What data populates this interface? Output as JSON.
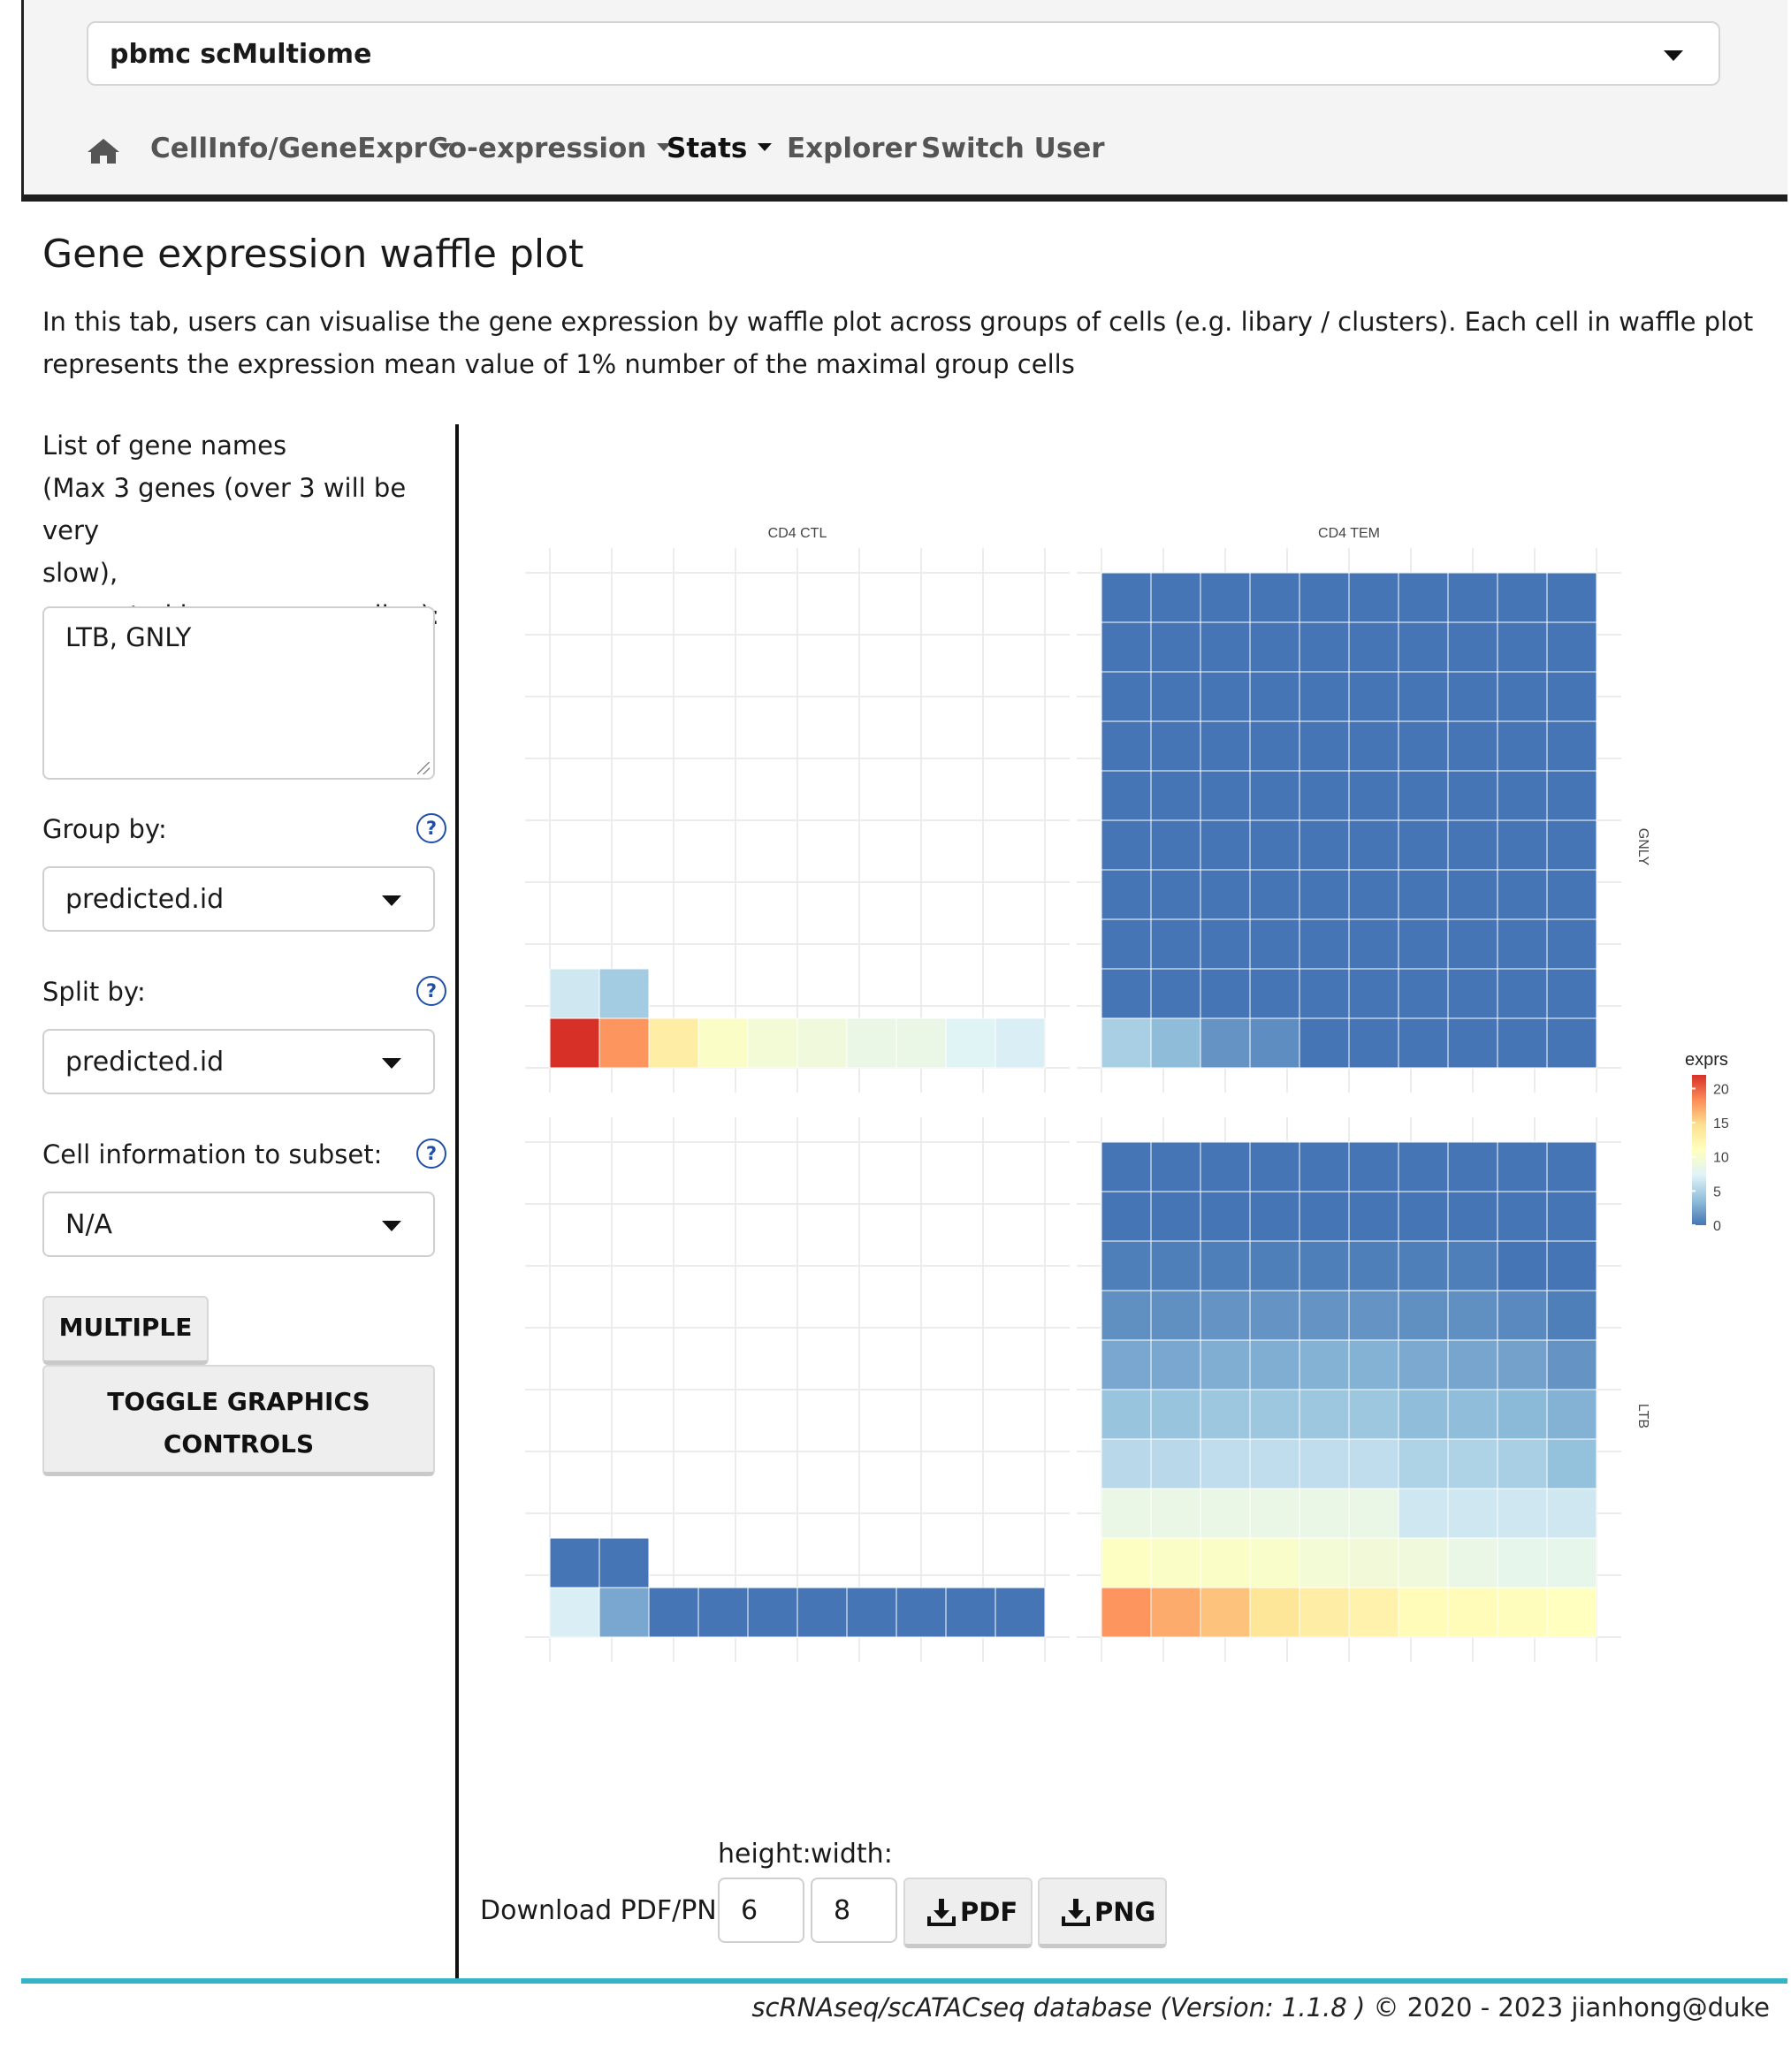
{
  "header": {
    "dataset_selector": "pbmc scMultiome",
    "nav": {
      "home_icon": "home-icon",
      "items": [
        "CellInfo/GeneExpr",
        "Co-expression",
        "Stats",
        "Explorer",
        "Switch User"
      ],
      "active": "Stats"
    }
  },
  "page": {
    "title": "Gene expression waffle plot",
    "description": "In this tab, users can visualise the gene expression by waffle plot across groups of cells (e.g. libary / clusters). Each cell in waffle plot represents the expression mean value of 1% number of the maximal group cells"
  },
  "sidebar": {
    "gene_list_label_lines": [
      "List of gene names",
      "(Max 3 genes (over 3 will be very",
      "slow),",
      "separated by , or ; or newline):"
    ],
    "gene_list_value": "LTB, GNLY",
    "group_by_label": "Group by:",
    "group_by_value": "predicted.id",
    "split_by_label": "Split by:",
    "split_by_value": "predicted.id",
    "subset_label": "Cell information to subset:",
    "subset_value": "N/A",
    "multiple_button": "MULTIPLE",
    "toggle_button_lines": [
      "TOGGLE GRAPHICS",
      "CONTROLS"
    ],
    "help_icon": "question-circle-icon"
  },
  "chart_data": {
    "type": "heatmap",
    "title": "",
    "column_facets": [
      "CD4 CTL",
      "CD4 TEM"
    ],
    "row_facets": [
      "GNLY",
      "LTB"
    ],
    "grid": true,
    "legend": {
      "title": "exprs",
      "ticks": [
        20,
        15,
        10,
        5,
        0
      ],
      "range": [
        0,
        22
      ],
      "placement": "right",
      "colors": [
        "#4575b4",
        "#91bfdb",
        "#e0f3f8",
        "#ffffbf",
        "#fee090",
        "#fc8d59",
        "#d73027"
      ]
    },
    "panels": [
      {
        "column": "CD4 CTL",
        "row": "GNLY",
        "rows_top_to_bottom": [
          [
            6.5,
            4.5
          ],
          [
            22,
            18,
            13,
            10.5,
            9.5,
            9.2,
            8.5,
            8.5,
            7.5,
            7
          ]
        ]
      },
      {
        "column": "CD4 TEM",
        "row": "GNLY",
        "rows_top_to_bottom": [
          [
            0,
            0,
            0,
            0,
            0,
            0,
            0,
            0,
            0,
            0
          ],
          [
            0,
            0,
            0,
            0,
            0,
            0,
            0,
            0,
            0,
            0
          ],
          [
            0,
            0,
            0,
            0,
            0,
            0,
            0,
            0,
            0,
            0
          ],
          [
            0,
            0,
            0,
            0,
            0,
            0,
            0,
            0,
            0,
            0
          ],
          [
            0,
            0,
            0,
            0,
            0,
            0,
            0,
            0,
            0,
            0
          ],
          [
            0,
            0,
            0,
            0,
            0,
            0,
            0,
            0,
            0,
            0
          ],
          [
            0,
            0,
            0,
            0,
            0,
            0,
            0,
            0,
            0,
            0
          ],
          [
            0,
            0,
            0,
            0,
            0,
            0,
            0,
            0,
            0,
            0
          ],
          [
            0,
            0,
            0,
            0,
            0,
            0,
            0,
            0,
            0,
            0
          ],
          [
            4.8,
            3.5,
            1.5,
            1.2,
            0,
            0,
            0,
            0,
            0,
            0
          ]
        ]
      },
      {
        "column": "CD4 CTL",
        "row": "LTB",
        "rows_top_to_bottom": [
          [
            0,
            0
          ],
          [
            7,
            2.5,
            0,
            0,
            0,
            0,
            0,
            0,
            0,
            0
          ]
        ]
      },
      {
        "column": "CD4 TEM",
        "row": "LTB",
        "rows_top_to_bottom": [
          [
            0,
            0,
            0,
            0,
            0,
            0,
            0,
            0,
            0,
            0
          ],
          [
            0,
            0,
            0,
            0,
            0,
            0,
            0,
            0,
            0,
            0
          ],
          [
            0.5,
            0.5,
            0.5,
            0.5,
            0.5,
            0.5,
            0.5,
            0.5,
            0,
            0
          ],
          [
            1.3,
            1.3,
            1.5,
            1.5,
            1.5,
            1.5,
            1.3,
            1.3,
            1,
            0.5
          ],
          [
            2.5,
            2.5,
            2.8,
            2.8,
            3,
            3,
            2.6,
            2.4,
            2.2,
            1.5
          ],
          [
            4,
            4,
            4.2,
            4.2,
            4.2,
            4.2,
            3.6,
            3.6,
            3.4,
            3
          ],
          [
            5.5,
            5.5,
            5.8,
            5.8,
            5.8,
            5.8,
            5,
            5,
            4.8,
            3.8
          ],
          [
            8.5,
            8.5,
            8.5,
            8.5,
            8.5,
            8.5,
            6.5,
            6.5,
            6.5,
            6.5
          ],
          [
            10.8,
            10.5,
            10.5,
            10.3,
            9.5,
            9.3,
            9.2,
            8.5,
            8.2,
            8.2
          ],
          [
            18,
            17,
            16,
            14,
            13,
            12.5,
            11.5,
            11.5,
            11.2,
            11
          ]
        ]
      }
    ]
  },
  "download": {
    "label": "Download PDF/PNG",
    "height_label": "height:",
    "width_label": "width:",
    "height_value": "6",
    "width_value": "8",
    "pdf_button": "PDF",
    "png_button": "PNG",
    "download_icon": "download-icon"
  },
  "footer": {
    "italic_text": "scRNAseq/scATACseq database (Version: 1.1.8 )",
    "text": " © 2020 - 2023 jianhong@duke"
  }
}
